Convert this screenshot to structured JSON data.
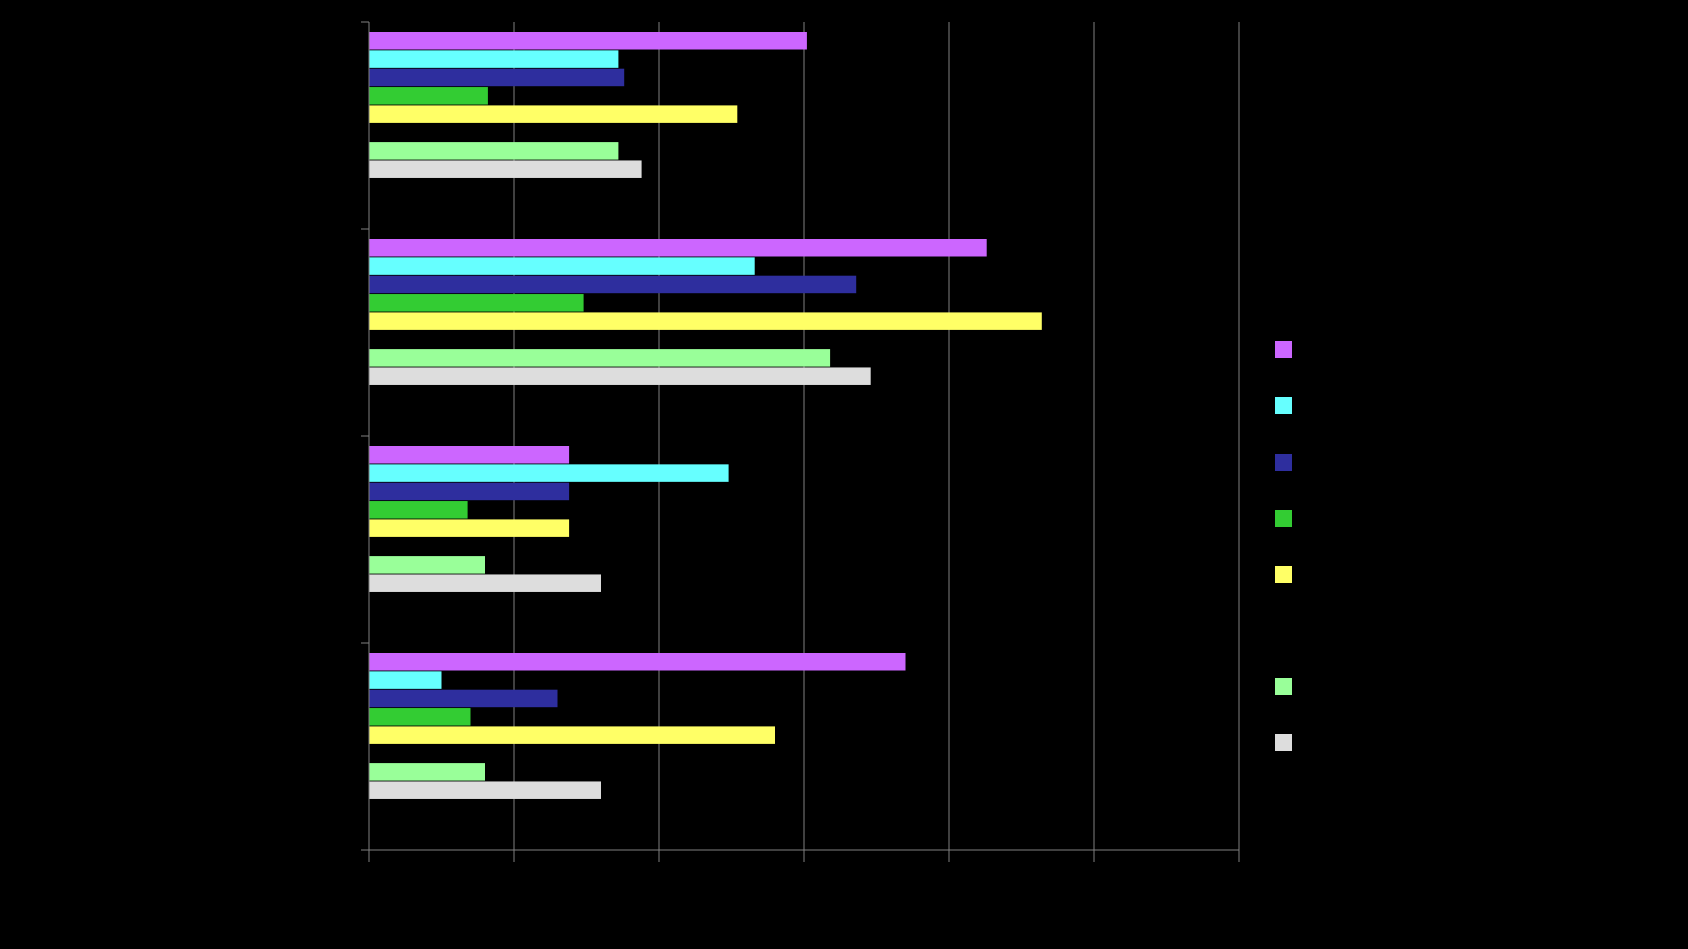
{
  "chart_data": {
    "type": "bar",
    "orientation": "horizontal",
    "title": "",
    "xlabel": "",
    "ylabel": "",
    "xlim": [
      0,
      30
    ],
    "x_gridline_step": 5,
    "grid": true,
    "background": "#000000",
    "gridline_color": "#808080",
    "legend_position": "right",
    "categories": [
      "",
      "",
      "",
      ""
    ],
    "series": [
      {
        "color": "#CC66FF",
        "values": [
          15.1,
          21.3,
          6.9,
          18.5
        ]
      },
      {
        "color": "#66FFFF",
        "values": [
          8.6,
          13.3,
          12.4,
          2.5
        ]
      },
      {
        "color": "#2E2E9E",
        "values": [
          8.8,
          16.8,
          6.9,
          6.5
        ]
      },
      {
        "color": "#33CC33",
        "values": [
          4.1,
          7.4,
          3.4,
          3.5
        ]
      },
      {
        "color": "#FFFF66",
        "values": [
          12.7,
          23.2,
          6.9,
          14.0
        ]
      },
      {
        "color": "#99FF99",
        "values": [
          8.6,
          15.9,
          4.0,
          4.0
        ]
      },
      {
        "color": "#DDDDDD",
        "values": [
          9.4,
          17.3,
          8.0,
          8.0
        ]
      }
    ]
  }
}
